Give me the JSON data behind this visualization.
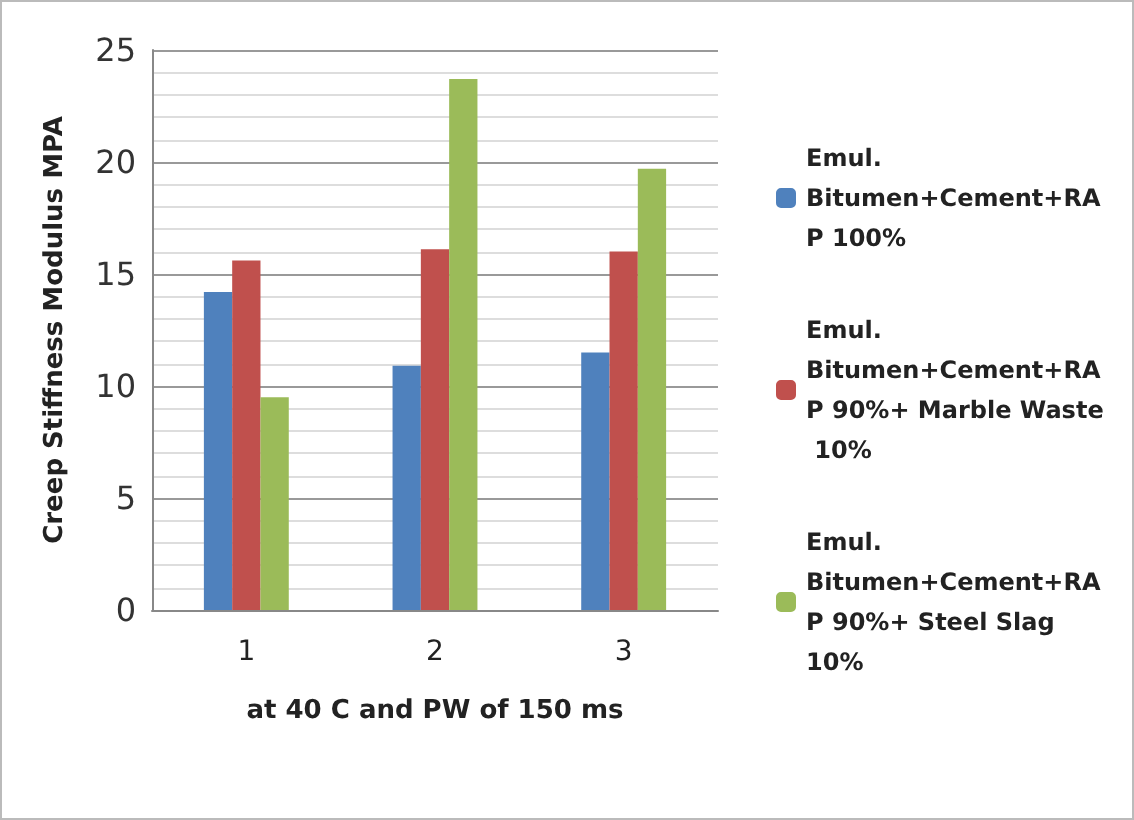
{
  "chart_data": {
    "type": "bar",
    "xlabel": "at 40 C and PW of 150 ms",
    "ylabel": "Creep Stiffness Modulus MPA",
    "categories": [
      "1",
      "2",
      "3"
    ],
    "series": [
      {
        "name": "Emul. Bitumen+Cement+RAP 100%",
        "color": "#4f81bd",
        "values": [
          14.2,
          10.9,
          11.5
        ]
      },
      {
        "name": "Emul. Bitumen+Cement+RAP 90%+ Marble Waste 10%",
        "color": "#c0504d",
        "values": [
          15.6,
          16.1,
          16.0
        ]
      },
      {
        "name": "Emul. Bitumen+Cement+RAP 90%+ Steel Slag 10%",
        "color": "#9bbb59",
        "values": [
          9.5,
          23.7,
          19.7
        ]
      }
    ],
    "ylim": [
      0,
      25
    ],
    "yticks": [
      0,
      5,
      10,
      15,
      20,
      25
    ],
    "grid": "y",
    "legend": "right"
  }
}
